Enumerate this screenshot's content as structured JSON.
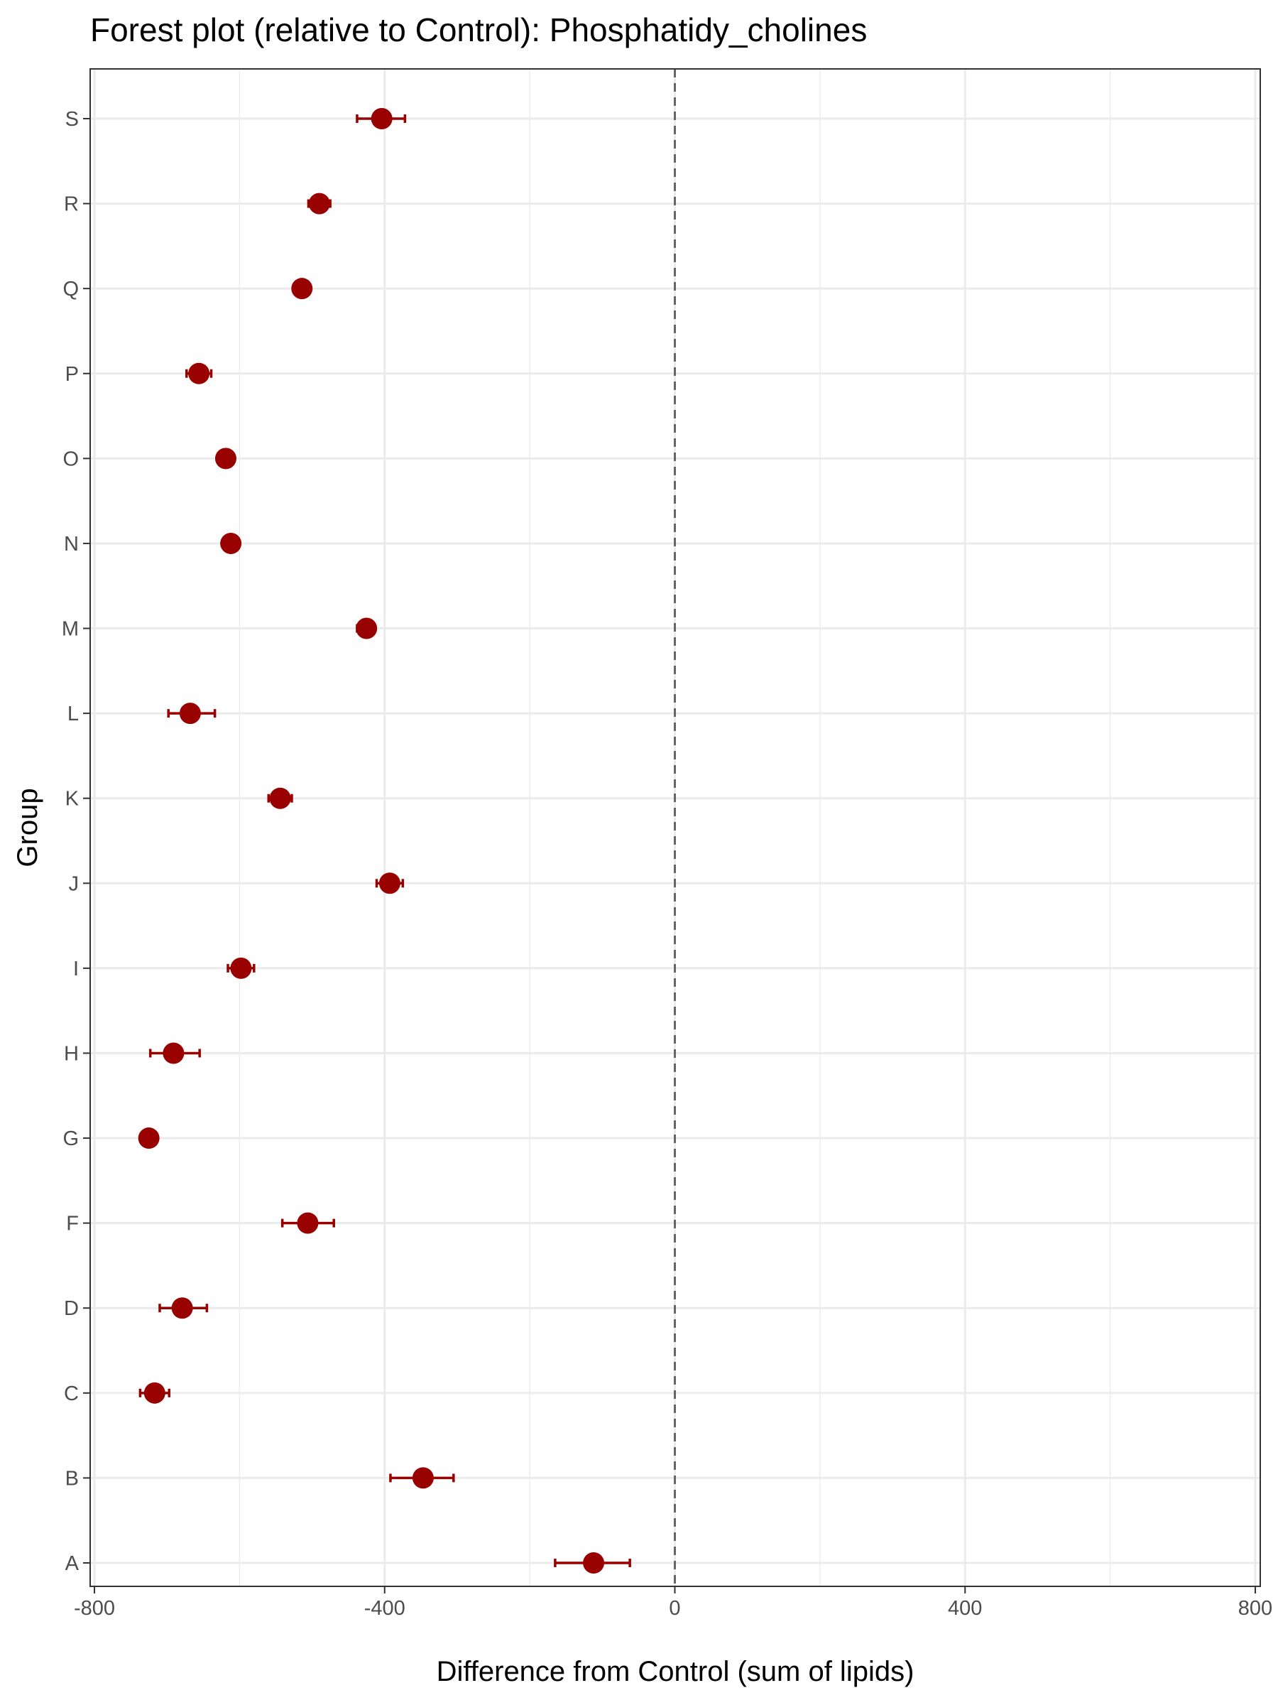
{
  "chart_data": {
    "type": "scatter",
    "subtype": "forest-plot",
    "title": "Forest plot (relative to Control): Phosphatidy_cholines",
    "xlabel": "Difference from Control (sum of lipids)",
    "ylabel": "Group",
    "xlim": [
      -800,
      800
    ],
    "x_ticks": [
      -800,
      -400,
      0,
      400,
      800
    ],
    "x_tick_labels": [
      "-800",
      "-400",
      "0",
      "400",
      "800"
    ],
    "reference_line": {
      "x": 0,
      "style": "dashed"
    },
    "grid": true,
    "colors": {
      "point": "#990000",
      "grid": "#ebebeb",
      "panel_border": "#333333",
      "reference_line": "#666666"
    },
    "groups": [
      {
        "label": "A",
        "estimate": -112,
        "lower": -165,
        "upper": -62
      },
      {
        "label": "B",
        "estimate": -347,
        "lower": -392,
        "upper": -305
      },
      {
        "label": "C",
        "estimate": -717,
        "lower": -737,
        "upper": -697
      },
      {
        "label": "D",
        "estimate": -679,
        "lower": -710,
        "upper": -645
      },
      {
        "label": "F",
        "estimate": -506,
        "lower": -541,
        "upper": -470
      },
      {
        "label": "G",
        "estimate": -725,
        "lower": -727,
        "upper": -723
      },
      {
        "label": "H",
        "estimate": -691,
        "lower": -723,
        "upper": -655
      },
      {
        "label": "I",
        "estimate": -598,
        "lower": -616,
        "upper": -580
      },
      {
        "label": "J",
        "estimate": -393,
        "lower": -411,
        "upper": -375
      },
      {
        "label": "K",
        "estimate": -544,
        "lower": -560,
        "upper": -528
      },
      {
        "label": "L",
        "estimate": -668,
        "lower": -698,
        "upper": -634
      },
      {
        "label": "M",
        "estimate": -425,
        "lower": -438,
        "upper": -414
      },
      {
        "label": "N",
        "estimate": -612,
        "lower": -614,
        "upper": -610
      },
      {
        "label": "O",
        "estimate": -619,
        "lower": -621,
        "upper": -617
      },
      {
        "label": "P",
        "estimate": -656,
        "lower": -673,
        "upper": -639
      },
      {
        "label": "Q",
        "estimate": -514,
        "lower": -516,
        "upper": -512
      },
      {
        "label": "R",
        "estimate": -490,
        "lower": -505,
        "upper": -475
      },
      {
        "label": "S",
        "estimate": -404,
        "lower": -438,
        "upper": -372
      }
    ]
  }
}
